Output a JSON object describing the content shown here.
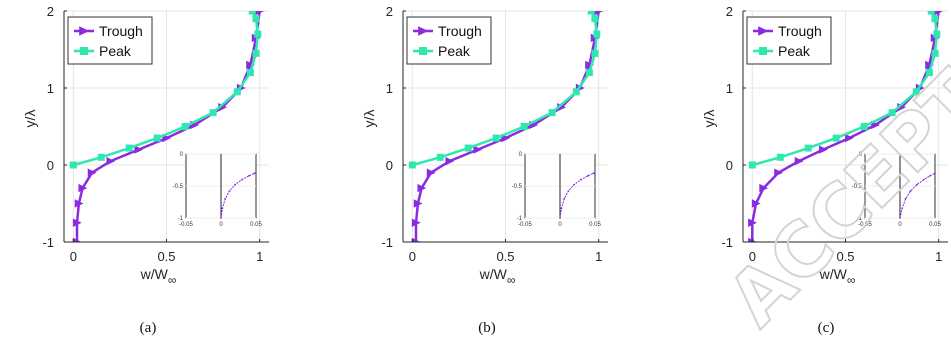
{
  "colors": {
    "trough": "#8a2be2",
    "peak": "#2ee8b0",
    "axis": "#262626",
    "grid": "#e6e6e6"
  },
  "watermark": "ACCEPTED MANUSCRIPT",
  "chart_data": [
    {
      "type": "line",
      "subcaption": "(a)",
      "xlabel": "w/W",
      "xlabel_sub": "∞",
      "ylabel": "y/λ",
      "xlim": [
        -0.05,
        1.05
      ],
      "ylim": [
        -1,
        2
      ],
      "xticks": [
        {
          "v": 0,
          "t": "0"
        },
        {
          "v": 0.5,
          "t": "0.5"
        },
        {
          "v": 1,
          "t": "1"
        }
      ],
      "yticks": [
        {
          "v": -1,
          "t": "-1"
        },
        {
          "v": 0,
          "t": "0"
        },
        {
          "v": 1,
          "t": "1"
        },
        {
          "v": 2,
          "t": "2"
        }
      ],
      "grid": true,
      "legend": {
        "position": "top-left",
        "entries": [
          "Trough",
          "Peak"
        ]
      },
      "series": [
        {
          "name": "Trough",
          "marker": "triangle-right",
          "x": [
            0.02,
            0.02,
            0.03,
            0.05,
            0.1,
            0.2,
            0.35,
            0.5,
            0.65,
            0.8,
            0.9,
            0.95,
            0.98,
            1.0
          ],
          "y": [
            -1.0,
            -0.75,
            -0.5,
            -0.3,
            -0.1,
            0.05,
            0.2,
            0.35,
            0.52,
            0.75,
            1.0,
            1.3,
            1.65,
            2.0
          ]
        },
        {
          "name": "Peak",
          "marker": "square",
          "x": [
            0.0,
            0.15,
            0.3,
            0.45,
            0.6,
            0.75,
            0.88,
            0.95,
            0.98,
            0.99,
            0.98,
            0.96
          ],
          "y": [
            0.0,
            0.1,
            0.22,
            0.35,
            0.5,
            0.68,
            0.95,
            1.2,
            1.45,
            1.7,
            1.9,
            2.0
          ]
        }
      ],
      "inset": {
        "xlim": [
          -0.05,
          0.05
        ],
        "ylim": [
          -1,
          0
        ],
        "xticks": [
          {
            "v": -0.05,
            "t": "-0.05"
          },
          {
            "v": 0,
            "t": "0"
          },
          {
            "v": 0.05,
            "t": "0.05"
          }
        ],
        "yticks": [
          {
            "v": 0,
            "t": "0"
          },
          {
            "v": -0.5,
            "t": "-0.5"
          },
          {
            "v": -1,
            "t": "-1"
          }
        ],
        "vline": 0,
        "series": [
          {
            "name": "Trough",
            "x": [
              0.0,
              0.002,
              0.006,
              0.012,
              0.02,
              0.03,
              0.04,
              0.048
            ],
            "y": [
              -1.0,
              -0.85,
              -0.7,
              -0.58,
              -0.48,
              -0.4,
              -0.34,
              -0.3
            ]
          }
        ]
      }
    },
    {
      "type": "line",
      "subcaption": "(b)",
      "xlabel": "w/W",
      "xlabel_sub": "∞",
      "ylabel": "y/λ",
      "xlim": [
        -0.05,
        1.05
      ],
      "ylim": [
        -1,
        2
      ],
      "xticks": [
        {
          "v": 0,
          "t": "0"
        },
        {
          "v": 0.5,
          "t": "0.5"
        },
        {
          "v": 1,
          "t": "1"
        }
      ],
      "yticks": [
        {
          "v": -1,
          "t": "-1"
        },
        {
          "v": 0,
          "t": "0"
        },
        {
          "v": 1,
          "t": "1"
        },
        {
          "v": 2,
          "t": "2"
        }
      ],
      "grid": true,
      "legend": {
        "position": "top-left",
        "entries": [
          "Trough",
          "Peak"
        ]
      },
      "series": [
        {
          "name": "Trough",
          "marker": "triangle-right",
          "x": [
            0.02,
            0.02,
            0.03,
            0.05,
            0.1,
            0.2,
            0.35,
            0.5,
            0.65,
            0.8,
            0.9,
            0.95,
            0.98,
            1.0
          ],
          "y": [
            -1.0,
            -0.75,
            -0.5,
            -0.3,
            -0.1,
            0.05,
            0.2,
            0.35,
            0.52,
            0.75,
            1.0,
            1.3,
            1.65,
            2.0
          ]
        },
        {
          "name": "Peak",
          "marker": "square",
          "x": [
            0.0,
            0.15,
            0.3,
            0.45,
            0.6,
            0.75,
            0.88,
            0.95,
            0.98,
            0.99,
            0.98,
            0.96
          ],
          "y": [
            0.0,
            0.1,
            0.22,
            0.35,
            0.5,
            0.68,
            0.95,
            1.2,
            1.45,
            1.7,
            1.9,
            2.0
          ]
        }
      ],
      "inset": {
        "xlim": [
          -0.05,
          0.05
        ],
        "ylim": [
          -1,
          0
        ],
        "xticks": [
          {
            "v": -0.05,
            "t": "-0.05"
          },
          {
            "v": 0,
            "t": "0"
          },
          {
            "v": 0.05,
            "t": "0.05"
          }
        ],
        "yticks": [
          {
            "v": 0,
            "t": "0"
          },
          {
            "v": -0.5,
            "t": "-0.5"
          },
          {
            "v": -1,
            "t": "-1"
          }
        ],
        "vline": 0,
        "series": [
          {
            "name": "Trough",
            "x": [
              0.0,
              0.002,
              0.006,
              0.012,
              0.02,
              0.03,
              0.04,
              0.048
            ],
            "y": [
              -1.0,
              -0.85,
              -0.7,
              -0.58,
              -0.48,
              -0.4,
              -0.34,
              -0.3
            ]
          }
        ]
      }
    },
    {
      "type": "line",
      "subcaption": "(c)",
      "xlabel": "w/W",
      "xlabel_sub": "∞",
      "ylabel": "y/λ",
      "xlim": [
        -0.05,
        1.05
      ],
      "ylim": [
        -1,
        2
      ],
      "xticks": [
        {
          "v": 0,
          "t": "0"
        },
        {
          "v": 0.5,
          "t": "0.5"
        },
        {
          "v": 1,
          "t": "1"
        }
      ],
      "yticks": [
        {
          "v": -1,
          "t": "-1"
        },
        {
          "v": 0,
          "t": "0"
        },
        {
          "v": 1,
          "t": "1"
        },
        {
          "v": 2,
          "t": "2"
        }
      ],
      "grid": true,
      "legend": {
        "position": "top-left",
        "entries": [
          "Trough",
          "Peak"
        ]
      },
      "series": [
        {
          "name": "Trough",
          "marker": "triangle-right",
          "x": [
            0.0,
            0.0,
            0.02,
            0.06,
            0.14,
            0.25,
            0.38,
            0.52,
            0.66,
            0.8,
            0.9,
            0.95,
            0.98,
            1.0
          ],
          "y": [
            -1.0,
            -0.75,
            -0.5,
            -0.3,
            -0.1,
            0.05,
            0.2,
            0.35,
            0.52,
            0.75,
            1.0,
            1.3,
            1.65,
            2.0
          ]
        },
        {
          "name": "Peak",
          "marker": "square",
          "x": [
            0.0,
            0.15,
            0.3,
            0.45,
            0.6,
            0.75,
            0.88,
            0.95,
            0.98,
            0.99,
            0.98,
            0.96
          ],
          "y": [
            0.0,
            0.1,
            0.22,
            0.35,
            0.5,
            0.68,
            0.95,
            1.2,
            1.45,
            1.7,
            1.9,
            2.0
          ]
        }
      ],
      "inset": {
        "xlim": [
          -0.05,
          0.05
        ],
        "ylim": [
          -1,
          0
        ],
        "xticks": [
          {
            "v": -0.05,
            "t": "-0.05"
          },
          {
            "v": 0,
            "t": "0"
          },
          {
            "v": 0.05,
            "t": "0.05"
          }
        ],
        "yticks": [
          {
            "v": 0,
            "t": "0"
          },
          {
            "v": -0.5,
            "t": "-0.5"
          },
          {
            "v": -1,
            "t": "-1"
          }
        ],
        "vline": 0,
        "series": [
          {
            "name": "Trough",
            "x": [
              0.0,
              0.003,
              0.008,
              0.015,
              0.024,
              0.034,
              0.043,
              0.05
            ],
            "y": [
              -1.0,
              -0.85,
              -0.7,
              -0.58,
              -0.48,
              -0.4,
              -0.34,
              -0.3
            ]
          }
        ]
      }
    }
  ]
}
